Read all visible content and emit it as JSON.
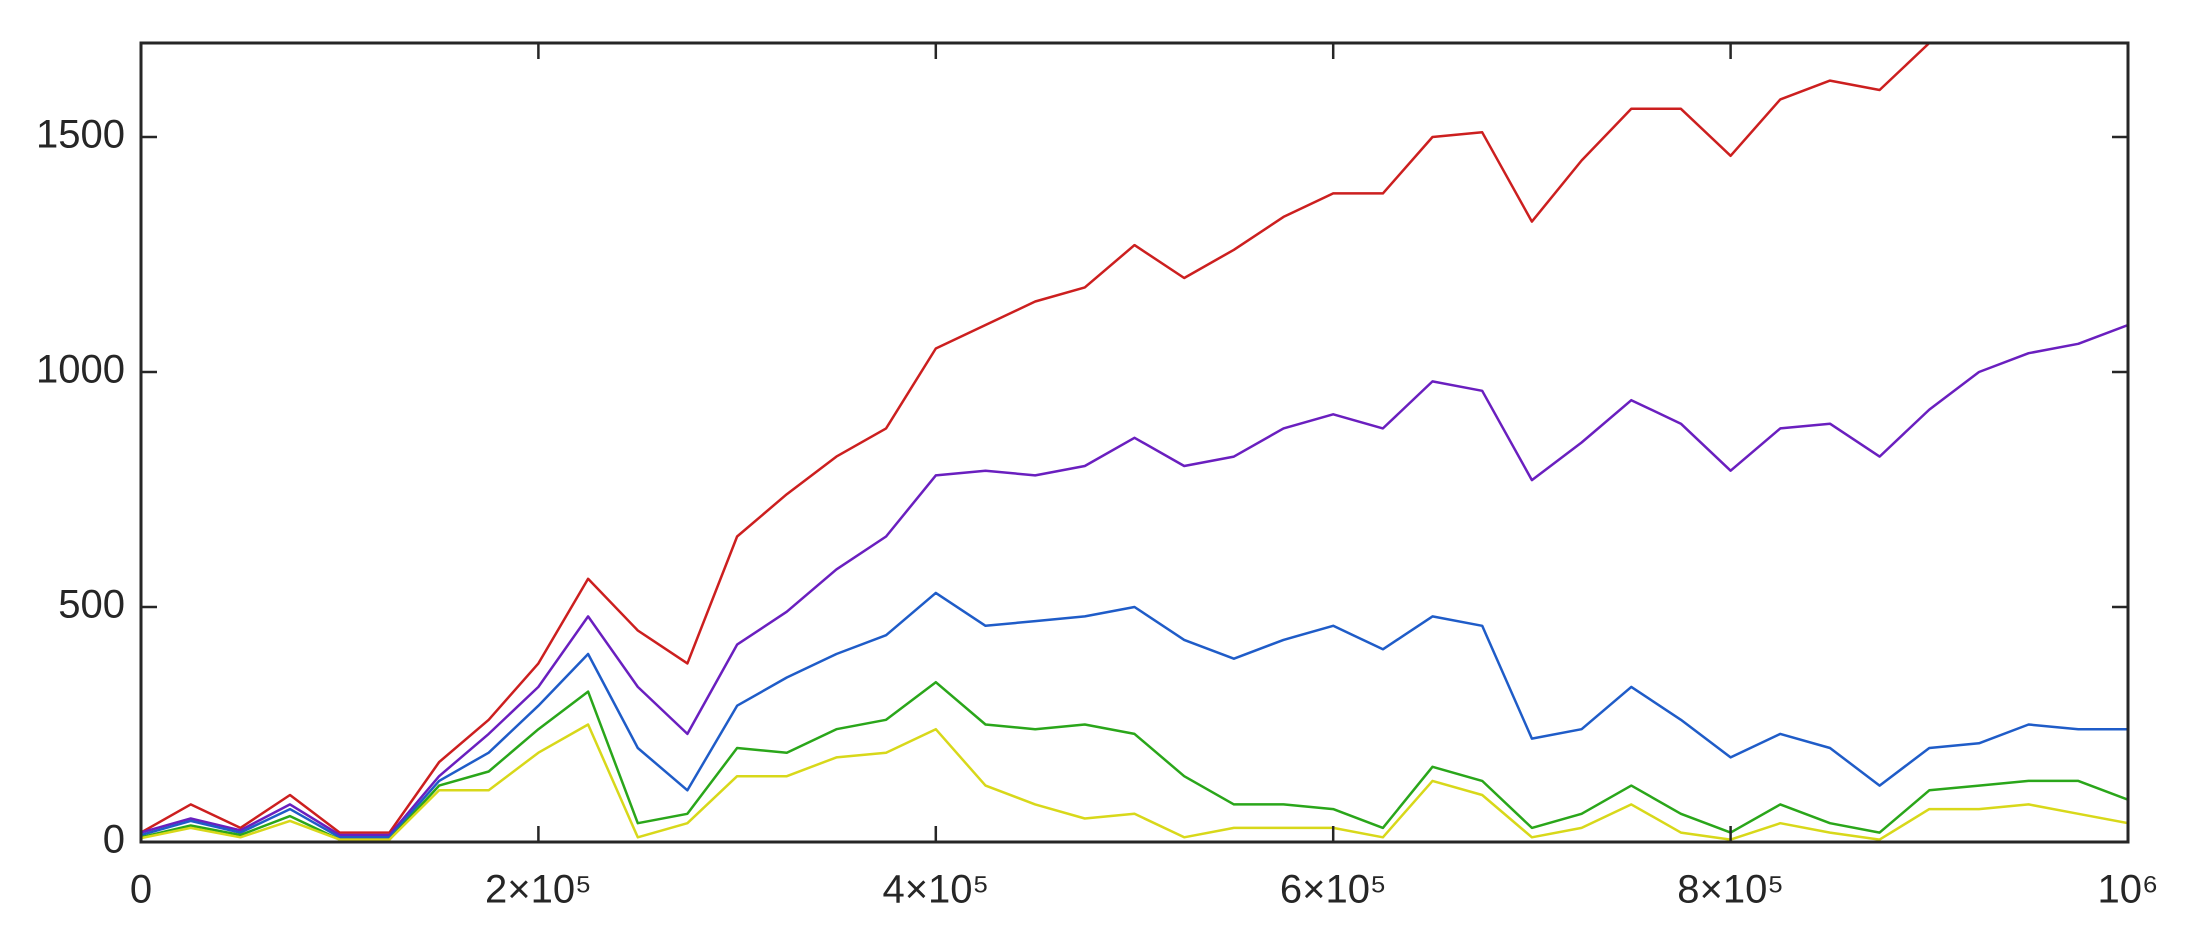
{
  "chart_data": {
    "type": "line",
    "x": [
      0,
      25000,
      50000,
      75000,
      100000,
      125000,
      150000,
      175000,
      200000,
      225000,
      250000,
      275000,
      300000,
      325000,
      350000,
      375000,
      400000,
      425000,
      450000,
      475000,
      500000,
      525000,
      550000,
      575000,
      600000,
      625000,
      650000,
      675000,
      700000,
      725000,
      750000,
      775000,
      800000,
      825000,
      850000,
      875000,
      900000,
      925000,
      950000,
      975000,
      1000000
    ],
    "series": [
      {
        "color": "#cc1f1f",
        "values": [
          20,
          80,
          30,
          100,
          20,
          20,
          170,
          260,
          380,
          560,
          450,
          380,
          650,
          740,
          820,
          880,
          1050,
          1100,
          1150,
          1180,
          1270,
          1200,
          1260,
          1330,
          1380,
          1380,
          1500,
          1510,
          1320,
          1450,
          1560,
          1560,
          1460,
          1580,
          1620,
          1600,
          1700,
          null,
          null,
          null,
          null
        ]
      },
      {
        "color": "#6a1fbf",
        "values": [
          20,
          50,
          25,
          80,
          15,
          15,
          140,
          230,
          330,
          480,
          330,
          230,
          420,
          490,
          580,
          650,
          780,
          790,
          780,
          800,
          860,
          800,
          820,
          880,
          910,
          880,
          980,
          960,
          770,
          850,
          940,
          890,
          790,
          880,
          890,
          820,
          920,
          1000,
          1040,
          1060,
          1100
        ]
      },
      {
        "color": "#1f5cc8",
        "values": [
          15,
          45,
          20,
          70,
          10,
          10,
          130,
          190,
          290,
          400,
          200,
          110,
          290,
          350,
          400,
          440,
          530,
          460,
          470,
          480,
          500,
          430,
          390,
          430,
          460,
          410,
          480,
          460,
          220,
          240,
          330,
          260,
          180,
          230,
          200,
          120,
          200,
          210,
          250,
          240,
          240
        ]
      },
      {
        "color": "#2aa61a",
        "values": [
          10,
          35,
          15,
          55,
          5,
          5,
          120,
          150,
          240,
          320,
          40,
          60,
          200,
          190,
          240,
          260,
          340,
          250,
          240,
          250,
          230,
          140,
          80,
          80,
          70,
          30,
          160,
          130,
          30,
          60,
          120,
          60,
          20,
          80,
          40,
          20,
          110,
          120,
          130,
          130,
          90
        ]
      },
      {
        "color": "#d8d81a",
        "values": [
          8,
          30,
          10,
          45,
          5,
          5,
          110,
          110,
          190,
          250,
          10,
          40,
          140,
          140,
          180,
          190,
          240,
          120,
          80,
          50,
          60,
          10,
          30,
          30,
          30,
          10,
          130,
          100,
          10,
          30,
          80,
          20,
          5,
          40,
          20,
          5,
          70,
          70,
          80,
          60,
          40
        ]
      }
    ],
    "xlim": [
      0,
      1000000
    ],
    "xticks": [
      0,
      {
        "value": 200000,
        "label": "2×10⁵"
      },
      {
        "value": 400000,
        "label": "4×10⁵"
      },
      {
        "value": 600000,
        "label": "6×10⁵"
      },
      {
        "value": 800000,
        "label": "8×10⁵"
      },
      {
        "value": 1000000,
        "label": "10⁶"
      }
    ],
    "ylim": [
      0,
      1700
    ],
    "yticks": [
      0,
      500,
      1000,
      1500
    ],
    "grid": false
  }
}
